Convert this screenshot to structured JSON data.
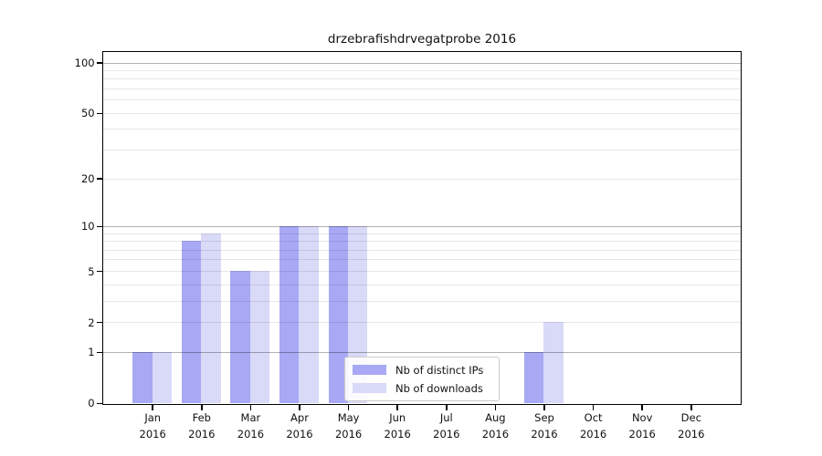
{
  "chart_data": {
    "type": "bar",
    "title": "drzebrafishdrvegatprobe 2016",
    "categories": [
      "Jan",
      "Feb",
      "Mar",
      "Apr",
      "May",
      "Jun",
      "Jul",
      "Aug",
      "Sep",
      "Oct",
      "Nov",
      "Dec"
    ],
    "x_tick_year": "2016",
    "series": [
      {
        "name": "Nb of distinct IPs",
        "color": "#a8a8f5",
        "values": [
          1,
          8,
          5,
          10,
          10,
          0,
          0,
          0,
          1,
          0,
          0,
          0
        ]
      },
      {
        "name": "Nb of downloads",
        "color": "#d9d9f8",
        "values": [
          1,
          9,
          5,
          10,
          10,
          0,
          0,
          0,
          2,
          0,
          0,
          0
        ]
      }
    ],
    "xlabel": "",
    "ylabel": "",
    "y_scale": "log10(1+v)",
    "ylim": [
      0,
      115
    ],
    "y_ticks_labeled": [
      0,
      1,
      2,
      5,
      10,
      20,
      50,
      100
    ],
    "y_gridlines_major": [
      1,
      10,
      100
    ],
    "y_gridlines_minor": [
      2,
      3,
      4,
      5,
      6,
      7,
      8,
      9,
      20,
      30,
      40,
      50,
      60,
      70,
      80,
      90
    ],
    "grid": true,
    "grid_over_bars": true,
    "legend_position": "lower-center",
    "colors": {
      "series_ips": "#a8a8f5",
      "series_downloads": "#d9d9f8",
      "major_grid": "#b3b3b3",
      "minor_grid": "#e8e8e8",
      "spine": "#000000",
      "background": "#ffffff",
      "legend_border": "#cccccc"
    }
  }
}
